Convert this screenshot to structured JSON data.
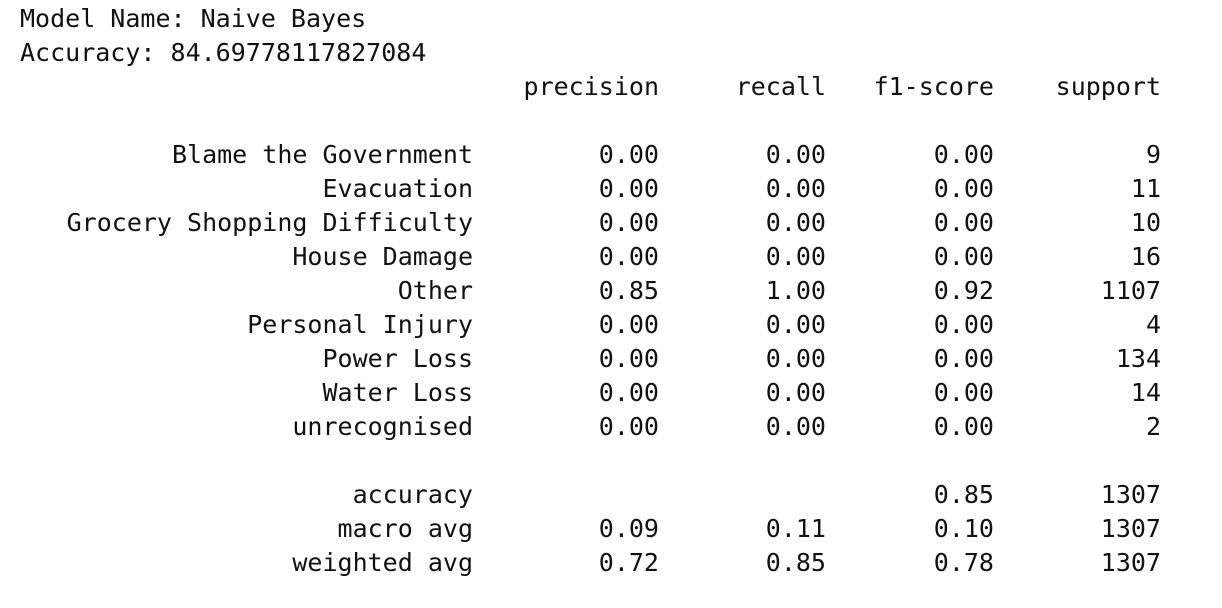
{
  "header": {
    "model_name_line": "Model Name: Naive Bayes",
    "accuracy_line": "Accuracy: 84.69778117827084"
  },
  "report": {
    "columns": [
      "precision",
      "recall",
      "f1-score",
      "support"
    ],
    "rows": [
      {
        "label": "Blame the Government",
        "precision": "0.00",
        "recall": "0.00",
        "f1": "0.00",
        "support": "9"
      },
      {
        "label": "Evacuation",
        "precision": "0.00",
        "recall": "0.00",
        "f1": "0.00",
        "support": "11"
      },
      {
        "label": "Grocery Shopping Difficulty",
        "precision": "0.00",
        "recall": "0.00",
        "f1": "0.00",
        "support": "10"
      },
      {
        "label": "House Damage",
        "precision": "0.00",
        "recall": "0.00",
        "f1": "0.00",
        "support": "16"
      },
      {
        "label": "Other",
        "precision": "0.85",
        "recall": "1.00",
        "f1": "0.92",
        "support": "1107"
      },
      {
        "label": "Personal Injury",
        "precision": "0.00",
        "recall": "0.00",
        "f1": "0.00",
        "support": "4"
      },
      {
        "label": "Power Loss",
        "precision": "0.00",
        "recall": "0.00",
        "f1": "0.00",
        "support": "134"
      },
      {
        "label": "Water Loss",
        "precision": "0.00",
        "recall": "0.00",
        "f1": "0.00",
        "support": "14"
      },
      {
        "label": "unrecognised",
        "precision": "0.00",
        "recall": "0.00",
        "f1": "0.00",
        "support": "2"
      }
    ],
    "summary": [
      {
        "label": "accuracy",
        "precision": "",
        "recall": "",
        "f1": "0.85",
        "support": "1307"
      },
      {
        "label": "macro avg",
        "precision": "0.09",
        "recall": "0.11",
        "f1": "0.10",
        "support": "1307"
      },
      {
        "label": "weighted avg",
        "precision": "0.72",
        "recall": "0.85",
        "f1": "0.78",
        "support": "1307"
      }
    ]
  }
}
